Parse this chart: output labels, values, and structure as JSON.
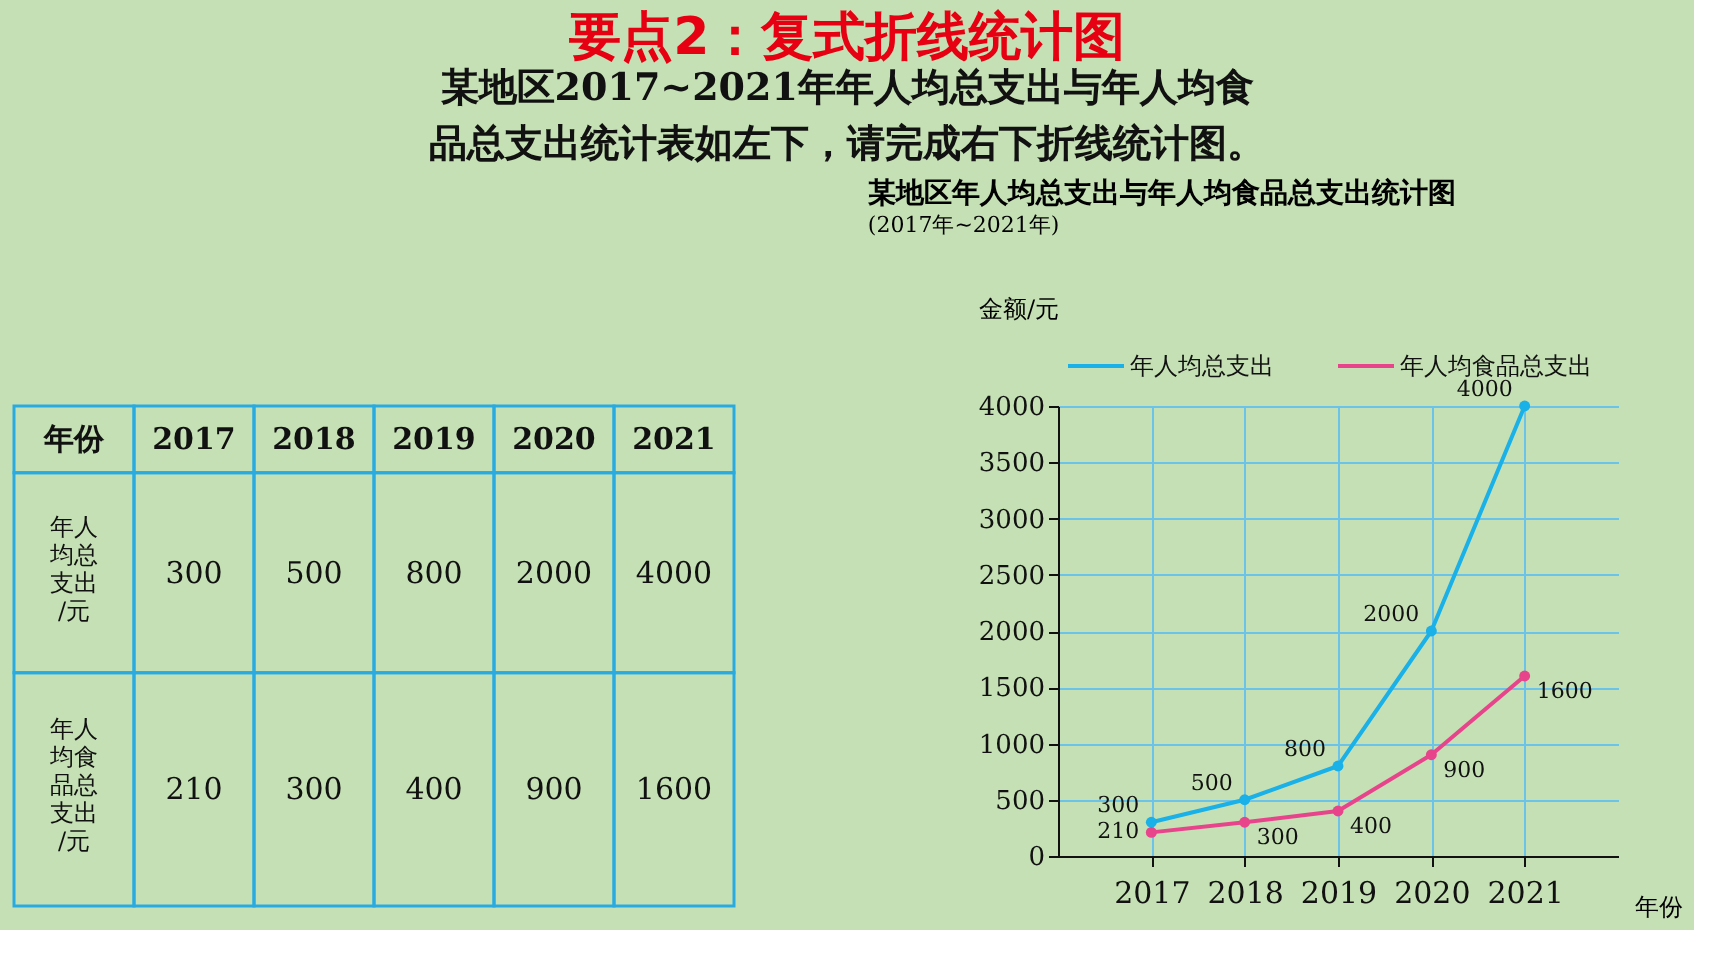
{
  "chart_data": [
    {
      "type": "heatmap",
      "title": "要点2：复式折线统计图",
      "subtitle": "某地区2017~2021年年人均总支出与年人均食品总支出统计表如左下，请完成右下折线统计图。",
      "xlabel": "年份",
      "categories": [
        "2017",
        "2018",
        "2019",
        "2020",
        "2021"
      ],
      "y_categories": [
        "年人均总支出/元",
        "年人均食品总支出/元"
      ],
      "cells": [
        [
          300,
          500,
          800,
          2000,
          4000
        ],
        [
          210,
          300,
          400,
          900,
          1600
        ]
      ],
      "data_labels": true
    },
    {
      "type": "line",
      "title": "某地区年人均总支出与年人均食品总支出统计图",
      "subtitle": "(2017年~2021年)",
      "ylabel": "金额/元",
      "xlabel": "年份",
      "categories": [
        "2017",
        "2018",
        "2019",
        "2020",
        "2021"
      ],
      "series": [
        {
          "name": "年人均总支出",
          "color": "#1ab0e8",
          "values": [
            300,
            500,
            800,
            2000,
            4000
          ]
        },
        {
          "name": "年人均食品总支出",
          "color": "#e8448c",
          "values": [
            210,
            300,
            400,
            900,
            1600
          ]
        }
      ],
      "ylim": [
        0,
        4000
      ],
      "yticks": [
        0,
        500,
        1000,
        1500,
        2000,
        2500,
        3000,
        3500,
        4000
      ],
      "grid": true,
      "legend": "top",
      "marker": "circle",
      "data_labels": true
    }
  ]
}
